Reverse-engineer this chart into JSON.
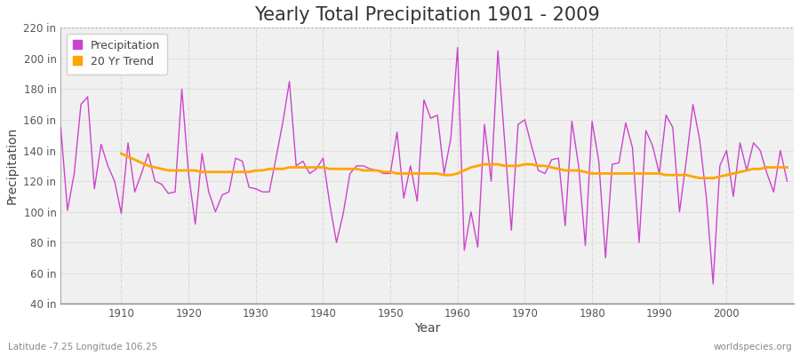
{
  "title": "Yearly Total Precipitation 1901 - 2009",
  "xlabel": "Year",
  "ylabel": "Precipitation",
  "lat_lon_label": "Latitude -7.25 Longitude 106.25",
  "source_label": "worldspecies.org",
  "years": [
    1901,
    1902,
    1903,
    1904,
    1905,
    1906,
    1907,
    1908,
    1909,
    1910,
    1911,
    1912,
    1913,
    1914,
    1915,
    1916,
    1917,
    1918,
    1919,
    1920,
    1921,
    1922,
    1923,
    1924,
    1925,
    1926,
    1927,
    1928,
    1929,
    1930,
    1931,
    1932,
    1933,
    1934,
    1935,
    1936,
    1937,
    1938,
    1939,
    1940,
    1941,
    1942,
    1943,
    1944,
    1945,
    1946,
    1947,
    1948,
    1949,
    1950,
    1951,
    1952,
    1953,
    1954,
    1955,
    1956,
    1957,
    1958,
    1959,
    1960,
    1961,
    1962,
    1963,
    1964,
    1965,
    1966,
    1967,
    1968,
    1969,
    1970,
    1971,
    1972,
    1973,
    1974,
    1975,
    1976,
    1977,
    1978,
    1979,
    1980,
    1981,
    1982,
    1983,
    1984,
    1985,
    1986,
    1987,
    1988,
    1989,
    1990,
    1991,
    1992,
    1993,
    1994,
    1995,
    1996,
    1997,
    1998,
    1999,
    2000,
    2001,
    2002,
    2003,
    2004,
    2005,
    2006,
    2007,
    2008,
    2009
  ],
  "precipitation": [
    155,
    101,
    125,
    170,
    175,
    115,
    144,
    130,
    120,
    99,
    145,
    113,
    125,
    138,
    120,
    118,
    112,
    113,
    180,
    125,
    92,
    138,
    113,
    100,
    111,
    113,
    135,
    133,
    116,
    115,
    113,
    113,
    135,
    158,
    185,
    130,
    133,
    125,
    128,
    135,
    105,
    80,
    99,
    125,
    130,
    130,
    128,
    127,
    125,
    125,
    152,
    109,
    130,
    107,
    173,
    161,
    163,
    125,
    148,
    207,
    75,
    100,
    77,
    157,
    120,
    205,
    146,
    88,
    157,
    160,
    143,
    127,
    125,
    134,
    135,
    91,
    159,
    130,
    78,
    159,
    133,
    70,
    131,
    132,
    158,
    142,
    80,
    153,
    143,
    125,
    163,
    155,
    100,
    133,
    170,
    147,
    109,
    53,
    130,
    140,
    110,
    145,
    127,
    145,
    140,
    125,
    113,
    140,
    120
  ],
  "trend_years": [
    1910,
    1911,
    1912,
    1913,
    1914,
    1915,
    1916,
    1917,
    1918,
    1919,
    1920,
    1921,
    1922,
    1923,
    1924,
    1925,
    1926,
    1927,
    1928,
    1929,
    1930,
    1931,
    1932,
    1933,
    1934,
    1935,
    1936,
    1937,
    1938,
    1939,
    1940,
    1941,
    1942,
    1943,
    1944,
    1945,
    1946,
    1947,
    1948,
    1949,
    1950,
    1951,
    1952,
    1953,
    1954,
    1955,
    1956,
    1957,
    1958,
    1959,
    1960,
    1961,
    1962,
    1963,
    1964,
    1965,
    1966,
    1967,
    1968,
    1969,
    1970,
    1971,
    1972,
    1973,
    1974,
    1975,
    1976,
    1977,
    1978,
    1979,
    1980,
    1981,
    1982,
    1983,
    1984,
    1985,
    1986,
    1987,
    1988,
    1989,
    1990,
    1991,
    1992,
    1993,
    1994,
    1995,
    1996,
    1997,
    1998,
    1999,
    2000,
    2001,
    2002,
    2003,
    2004,
    2005,
    2006,
    2007,
    2008,
    2009
  ],
  "trend": [
    138,
    136,
    134,
    132,
    130,
    129,
    128,
    127,
    127,
    127,
    127,
    127,
    126,
    126,
    126,
    126,
    126,
    126,
    126,
    126,
    127,
    127,
    128,
    128,
    128,
    129,
    129,
    129,
    129,
    129,
    129,
    128,
    128,
    128,
    128,
    128,
    127,
    127,
    127,
    126,
    126,
    125,
    125,
    125,
    125,
    125,
    125,
    125,
    124,
    124,
    125,
    127,
    129,
    130,
    131,
    131,
    131,
    130,
    130,
    130,
    131,
    131,
    130,
    130,
    129,
    128,
    127,
    127,
    127,
    126,
    125,
    125,
    125,
    125,
    125,
    125,
    125,
    125,
    125,
    125,
    125,
    124,
    124,
    124,
    124,
    123,
    122,
    122,
    122,
    123,
    124,
    125,
    126,
    127,
    128,
    128,
    129,
    129,
    129,
    129
  ],
  "precip_color": "#CC44CC",
  "trend_color": "#FFA500",
  "bg_color": "#FFFFFF",
  "plot_bg_color": "#F0F0F0",
  "grid_color": "#D8D8D8",
  "ylim": [
    40,
    220
  ],
  "yticks": [
    40,
    60,
    80,
    100,
    120,
    140,
    160,
    180,
    200,
    220
  ],
  "ytick_labels": [
    "40 in",
    "60 in",
    "80 in",
    "100 in",
    "120 in",
    "140 in",
    "160 in",
    "180 in",
    "200 in",
    "220 in"
  ],
  "xticks": [
    1910,
    1920,
    1930,
    1940,
    1950,
    1960,
    1970,
    1980,
    1990,
    2000
  ],
  "title_fontsize": 15,
  "axis_fontsize": 10,
  "tick_fontsize": 8.5,
  "legend_fontsize": 9,
  "dotted_line_y": 220
}
